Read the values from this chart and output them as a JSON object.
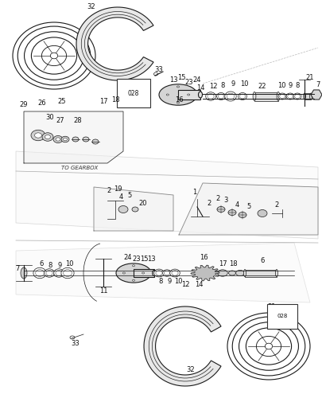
{
  "bg_color": "#ffffff",
  "line_color": "#1a1a1a",
  "label_color": "#111111",
  "gray_color": "#888888",
  "light_gray": "#cccccc"
}
